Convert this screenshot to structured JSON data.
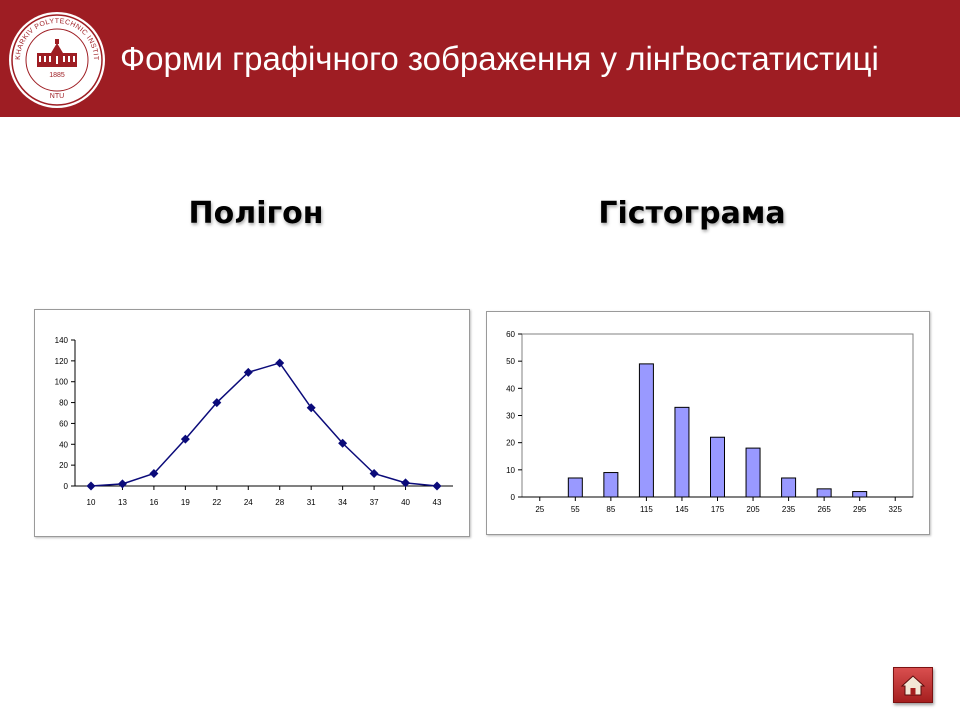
{
  "header": {
    "title": "Форми графічного зображення у лінґвостатистиці",
    "logo": {
      "ring_text": "KHARKIV POLYTECHNIC INSTITUTE",
      "year": "1885",
      "short_name": "NTU",
      "icon": "university-building-seal"
    },
    "background_color": "#9e1d23"
  },
  "panels": {
    "left_heading": "Полігон",
    "right_heading": "Гістограма"
  },
  "chart_data": [
    {
      "type": "line",
      "title": "Полігон",
      "categories": [
        "10",
        "13",
        "16",
        "19",
        "22",
        "24",
        "28",
        "31",
        "34",
        "37",
        "40",
        "43"
      ],
      "values": [
        0,
        2,
        12,
        45,
        80,
        109,
        118,
        75,
        41,
        12,
        3,
        0
      ],
      "ylim": [
        0,
        140
      ],
      "y_ticks": [
        0,
        20,
        40,
        60,
        80,
        100,
        120,
        140
      ],
      "grid": false,
      "marker": "diamond",
      "color": "#0b0b7a"
    },
    {
      "type": "bar",
      "title": "Гістограма",
      "categories": [
        "25",
        "55",
        "85",
        "115",
        "145",
        "175",
        "205",
        "235",
        "265",
        "295",
        "325"
      ],
      "values": [
        0,
        7,
        9,
        49,
        33,
        22,
        18,
        7,
        3,
        2,
        0
      ],
      "ylim": [
        0,
        60
      ],
      "y_ticks": [
        0,
        10,
        20,
        30,
        40,
        50,
        60
      ],
      "grid": false,
      "bar_color": "#9999ff",
      "bar_edge_color": "#000000"
    }
  ],
  "navigation": {
    "home_icon": "home-icon"
  }
}
